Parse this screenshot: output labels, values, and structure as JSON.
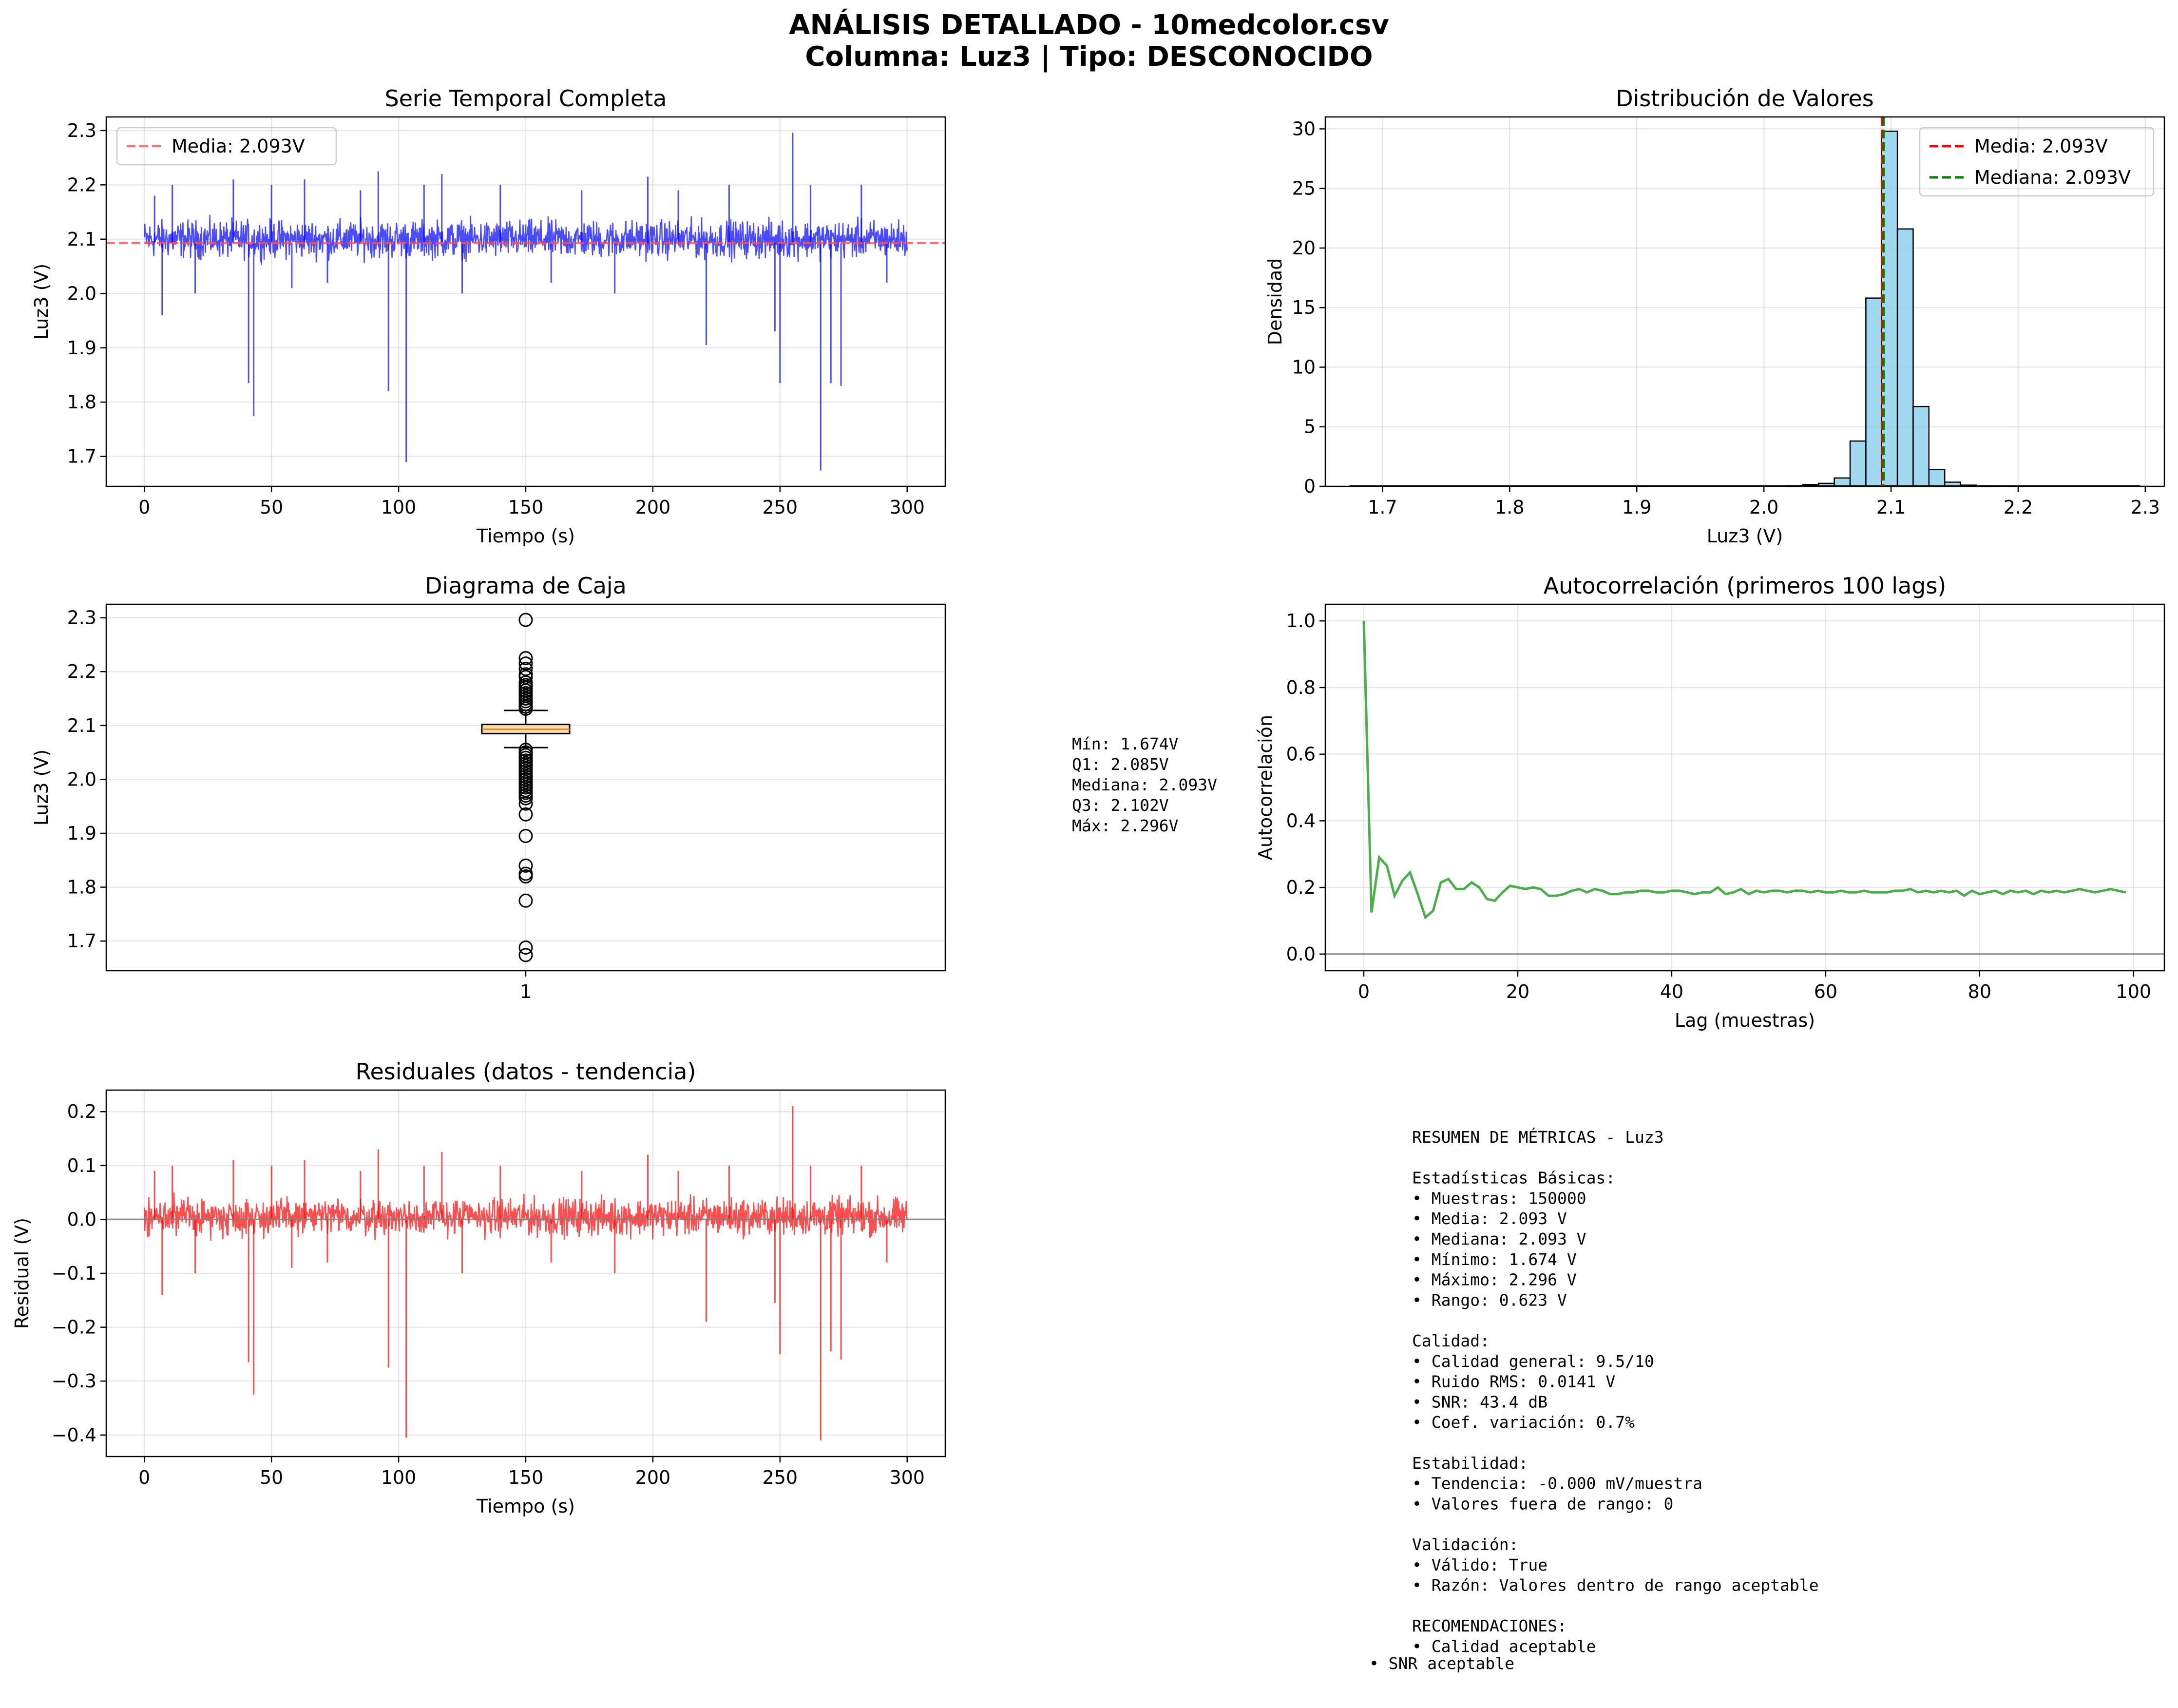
{
  "title_line1": "ANÁLISIS DETALLADO - 10medcolor.csv",
  "title_line2": "Columna: Luz3 | Tipo: DESCONOCIDO",
  "chart_data": [
    {
      "id": "serie",
      "type": "line",
      "title": "Serie Temporal Completa",
      "xlabel": "Tiempo (s)",
      "ylabel": "Luz3 (V)",
      "xlim": [
        -15,
        315
      ],
      "ylim": [
        1.645,
        2.325
      ],
      "xticks": [
        0,
        50,
        100,
        150,
        200,
        250,
        300
      ],
      "xtick_labels": [
        "0",
        "50",
        "100",
        "150",
        "200",
        "250",
        "300"
      ],
      "yticks": [
        1.7,
        1.8,
        1.9,
        2.0,
        2.1,
        2.2,
        2.3
      ],
      "ytick_labels": [
        "1.7",
        "1.8",
        "1.9",
        "2.0",
        "2.1",
        "2.2",
        "2.3"
      ],
      "grid": true,
      "legend": "top-left",
      "series": [
        {
          "name": "Luz3",
          "color": "#0000ff",
          "band": [
            2.05,
            2.15
          ],
          "base": 2.093
        }
      ],
      "reference_line": {
        "value": 2.093,
        "label": "Media: 2.093V",
        "color": "#ff4d4d"
      },
      "spikes": [
        {
          "x": 4,
          "y": 2.18
        },
        {
          "x": 7,
          "y": 1.96
        },
        {
          "x": 11,
          "y": 2.2
        },
        {
          "x": 20,
          "y": 2.0
        },
        {
          "x": 35,
          "y": 2.21
        },
        {
          "x": 41,
          "y": 1.835
        },
        {
          "x": 43,
          "y": 1.775
        },
        {
          "x": 50,
          "y": 2.2
        },
        {
          "x": 58,
          "y": 2.01
        },
        {
          "x": 63,
          "y": 2.21
        },
        {
          "x": 72,
          "y": 2.02
        },
        {
          "x": 85,
          "y": 2.19
        },
        {
          "x": 92,
          "y": 2.225
        },
        {
          "x": 96,
          "y": 1.82
        },
        {
          "x": 103,
          "y": 1.69
        },
        {
          "x": 110,
          "y": 2.2
        },
        {
          "x": 117,
          "y": 2.22
        },
        {
          "x": 125,
          "y": 2.0
        },
        {
          "x": 140,
          "y": 2.2
        },
        {
          "x": 160,
          "y": 2.02
        },
        {
          "x": 172,
          "y": 2.19
        },
        {
          "x": 185,
          "y": 2.0
        },
        {
          "x": 198,
          "y": 2.215
        },
        {
          "x": 210,
          "y": 2.19
        },
        {
          "x": 221,
          "y": 1.905
        },
        {
          "x": 230,
          "y": 2.2
        },
        {
          "x": 248,
          "y": 1.93
        },
        {
          "x": 250,
          "y": 1.835
        },
        {
          "x": 255,
          "y": 2.296
        },
        {
          "x": 262,
          "y": 2.2
        },
        {
          "x": 266,
          "y": 1.674
        },
        {
          "x": 270,
          "y": 1.835
        },
        {
          "x": 274,
          "y": 1.83
        },
        {
          "x": 282,
          "y": 2.2
        },
        {
          "x": 292,
          "y": 2.02
        }
      ]
    },
    {
      "id": "hist",
      "type": "bar",
      "title": "Distribución de Valores",
      "xlabel": "Luz3 (V)",
      "ylabel": "Densidad",
      "xlim": [
        1.655,
        2.315
      ],
      "ylim": [
        0,
        31
      ],
      "xticks": [
        1.7,
        1.8,
        1.9,
        2.0,
        2.1,
        2.2,
        2.3
      ],
      "xtick_labels": [
        "1.7",
        "1.8",
        "1.9",
        "2.0",
        "2.1",
        "2.2",
        "2.3"
      ],
      "yticks": [
        0,
        5,
        10,
        15,
        20,
        25,
        30
      ],
      "ytick_labels": [
        "0",
        "5",
        "10",
        "15",
        "20",
        "25",
        "30"
      ],
      "grid": true,
      "legend": "top-right",
      "bin_width": 0.0124,
      "bins": [
        {
          "x0": 2.0182,
          "h": 0.05
        },
        {
          "x0": 2.0306,
          "h": 0.15
        },
        {
          "x0": 2.043,
          "h": 0.25
        },
        {
          "x0": 2.0554,
          "h": 0.7
        },
        {
          "x0": 2.0678,
          "h": 3.8
        },
        {
          "x0": 2.0802,
          "h": 15.8
        },
        {
          "x0": 2.0926,
          "h": 29.8
        },
        {
          "x0": 2.105,
          "h": 21.6
        },
        {
          "x0": 2.1174,
          "h": 6.7
        },
        {
          "x0": 2.1298,
          "h": 1.4
        },
        {
          "x0": 2.1422,
          "h": 0.35
        },
        {
          "x0": 2.1546,
          "h": 0.1
        },
        {
          "x0": 2.167,
          "h": 0.04
        }
      ],
      "mean_line": {
        "value": 2.093,
        "label": "Media: 2.093V",
        "color": "#ff0000"
      },
      "median_line": {
        "value": 2.093,
        "label": "Mediana: 2.093V",
        "color": "#008000"
      }
    },
    {
      "id": "box",
      "type": "box",
      "title": "Diagrama de Caja",
      "ylabel": "Luz3 (V)",
      "ylim": [
        1.645,
        2.325
      ],
      "xticks": [
        1
      ],
      "xtick_labels": [
        "1"
      ],
      "yticks": [
        1.7,
        1.8,
        1.9,
        2.0,
        2.1,
        2.2,
        2.3
      ],
      "ytick_labels": [
        "1.7",
        "1.8",
        "1.9",
        "2.0",
        "2.1",
        "2.2",
        "2.3"
      ],
      "grid": true,
      "q1": 2.085,
      "median": 2.093,
      "q3": 2.102,
      "whisker_low": 2.059,
      "whisker_high": 2.128,
      "outliers": [
        2.296,
        2.225,
        2.215,
        2.205,
        2.195,
        2.19,
        2.18,
        2.175,
        2.17,
        2.165,
        2.16,
        2.155,
        2.15,
        2.145,
        2.14,
        2.135,
        2.131,
        2.055,
        2.05,
        2.045,
        2.04,
        2.035,
        2.03,
        2.025,
        2.02,
        2.015,
        2.01,
        2.005,
        2.0,
        1.995,
        1.99,
        1.985,
        1.98,
        1.975,
        1.97,
        1.965,
        1.955,
        1.935,
        1.895,
        1.84,
        1.825,
        1.82,
        1.775,
        1.688,
        1.674
      ]
    },
    {
      "id": "acf",
      "type": "line",
      "title": "Autocorrelación (primeros 100 lags)",
      "xlabel": "Lag (muestras)",
      "ylabel": "Autocorrelación",
      "xlim": [
        -5,
        104
      ],
      "ylim": [
        -0.05,
        1.05
      ],
      "xticks": [
        0,
        20,
        40,
        60,
        80,
        100
      ],
      "xtick_labels": [
        "0",
        "20",
        "40",
        "60",
        "80",
        "100"
      ],
      "yticks": [
        0.0,
        0.2,
        0.4,
        0.6,
        0.8,
        1.0
      ],
      "ytick_labels": [
        "0.0",
        "0.2",
        "0.4",
        "0.6",
        "0.8",
        "1.0"
      ],
      "grid": true,
      "color": "#2ca02c",
      "values": [
        1.0,
        0.125,
        0.29,
        0.265,
        0.175,
        0.22,
        0.245,
        0.18,
        0.11,
        0.13,
        0.215,
        0.225,
        0.195,
        0.195,
        0.215,
        0.2,
        0.165,
        0.16,
        0.185,
        0.205,
        0.2,
        0.195,
        0.2,
        0.195,
        0.175,
        0.175,
        0.18,
        0.19,
        0.195,
        0.185,
        0.195,
        0.19,
        0.18,
        0.18,
        0.185,
        0.185,
        0.19,
        0.19,
        0.185,
        0.185,
        0.19,
        0.19,
        0.185,
        0.18,
        0.185,
        0.185,
        0.2,
        0.18,
        0.185,
        0.195,
        0.18,
        0.19,
        0.185,
        0.19,
        0.19,
        0.185,
        0.19,
        0.19,
        0.185,
        0.19,
        0.185,
        0.185,
        0.19,
        0.185,
        0.185,
        0.19,
        0.185,
        0.185,
        0.185,
        0.19,
        0.19,
        0.195,
        0.185,
        0.19,
        0.185,
        0.19,
        0.185,
        0.19,
        0.175,
        0.19,
        0.18,
        0.185,
        0.19,
        0.18,
        0.19,
        0.185,
        0.19,
        0.18,
        0.19,
        0.185,
        0.19,
        0.185,
        0.19,
        0.195,
        0.19,
        0.185,
        0.19,
        0.195,
        0.19,
        0.185
      ]
    },
    {
      "id": "resid",
      "type": "line",
      "title": "Residuales (datos - tendencia)",
      "xlabel": "Tiempo (s)",
      "ylabel": "Residual (V)",
      "xlim": [
        -15,
        315
      ],
      "ylim": [
        -0.44,
        0.24
      ],
      "xticks": [
        0,
        50,
        100,
        150,
        200,
        250,
        300
      ],
      "xtick_labels": [
        "0",
        "50",
        "100",
        "150",
        "200",
        "250",
        "300"
      ],
      "yticks": [
        -0.4,
        -0.3,
        -0.2,
        -0.1,
        0.0,
        0.1,
        0.2
      ],
      "ytick_labels": [
        "−0.4",
        "−0.3",
        "−0.2",
        "−0.1",
        "0.0",
        "0.1",
        "0.2"
      ],
      "grid": true,
      "series": [
        {
          "name": "Residual",
          "color": "#ff0000",
          "band": [
            -0.045,
            0.055
          ],
          "base": 0.0
        }
      ],
      "zero_line": {
        "value": 0.0,
        "color": "#808080"
      },
      "spikes": [
        {
          "x": 4,
          "y": 0.09
        },
        {
          "x": 7,
          "y": -0.14
        },
        {
          "x": 11,
          "y": 0.1
        },
        {
          "x": 20,
          "y": -0.1
        },
        {
          "x": 35,
          "y": 0.11
        },
        {
          "x": 41,
          "y": -0.265
        },
        {
          "x": 43,
          "y": -0.325
        },
        {
          "x": 50,
          "y": 0.1
        },
        {
          "x": 58,
          "y": -0.09
        },
        {
          "x": 63,
          "y": 0.11
        },
        {
          "x": 72,
          "y": -0.08
        },
        {
          "x": 85,
          "y": 0.09
        },
        {
          "x": 92,
          "y": 0.13
        },
        {
          "x": 96,
          "y": -0.275
        },
        {
          "x": 103,
          "y": -0.405
        },
        {
          "x": 110,
          "y": 0.1
        },
        {
          "x": 117,
          "y": 0.125
        },
        {
          "x": 125,
          "y": -0.1
        },
        {
          "x": 140,
          "y": 0.1
        },
        {
          "x": 160,
          "y": -0.08
        },
        {
          "x": 172,
          "y": 0.09
        },
        {
          "x": 185,
          "y": -0.1
        },
        {
          "x": 198,
          "y": 0.12
        },
        {
          "x": 210,
          "y": 0.09
        },
        {
          "x": 221,
          "y": -0.19
        },
        {
          "x": 230,
          "y": 0.1
        },
        {
          "x": 248,
          "y": -0.155
        },
        {
          "x": 250,
          "y": -0.25
        },
        {
          "x": 255,
          "y": 0.21
        },
        {
          "x": 262,
          "y": 0.1
        },
        {
          "x": 266,
          "y": -0.41
        },
        {
          "x": 270,
          "y": -0.245
        },
        {
          "x": 274,
          "y": -0.26
        },
        {
          "x": 282,
          "y": 0.1
        },
        {
          "x": 292,
          "y": -0.08
        }
      ]
    }
  ],
  "box_stats_lines": [
    "Mín: 1.674V",
    "Q1: 2.085V",
    "Mediana: 2.093V",
    "Q3: 2.102V",
    "Máx: 2.296V"
  ],
  "summary_lines": [
    "RESUMEN DE MÉTRICAS - Luz3",
    "",
    "Estadísticas Básicas:",
    "• Muestras: 150000",
    "• Media: 2.093 V",
    "• Mediana: 2.093 V",
    "• Mínimo: 1.674 V",
    "• Máximo: 2.296 V",
    "• Rango: 0.623 V",
    "",
    "Calidad:",
    "• Calidad general: 9.5/10",
    "• Ruido RMS: 0.0141 V",
    "• SNR: 43.4 dB",
    "• Coef. variación: 0.7%",
    "",
    "Estabilidad:",
    "• Tendencia: -0.000 mV/muestra",
    "• Valores fuera de rango: 0",
    "",
    "Validación:",
    "• Válido: True",
    "• Razón: Valores dentro de rango aceptable",
    "",
    "RECOMENDACIONES:",
    "• Calidad aceptable"
  ],
  "summary_last_line": "• SNR aceptable"
}
